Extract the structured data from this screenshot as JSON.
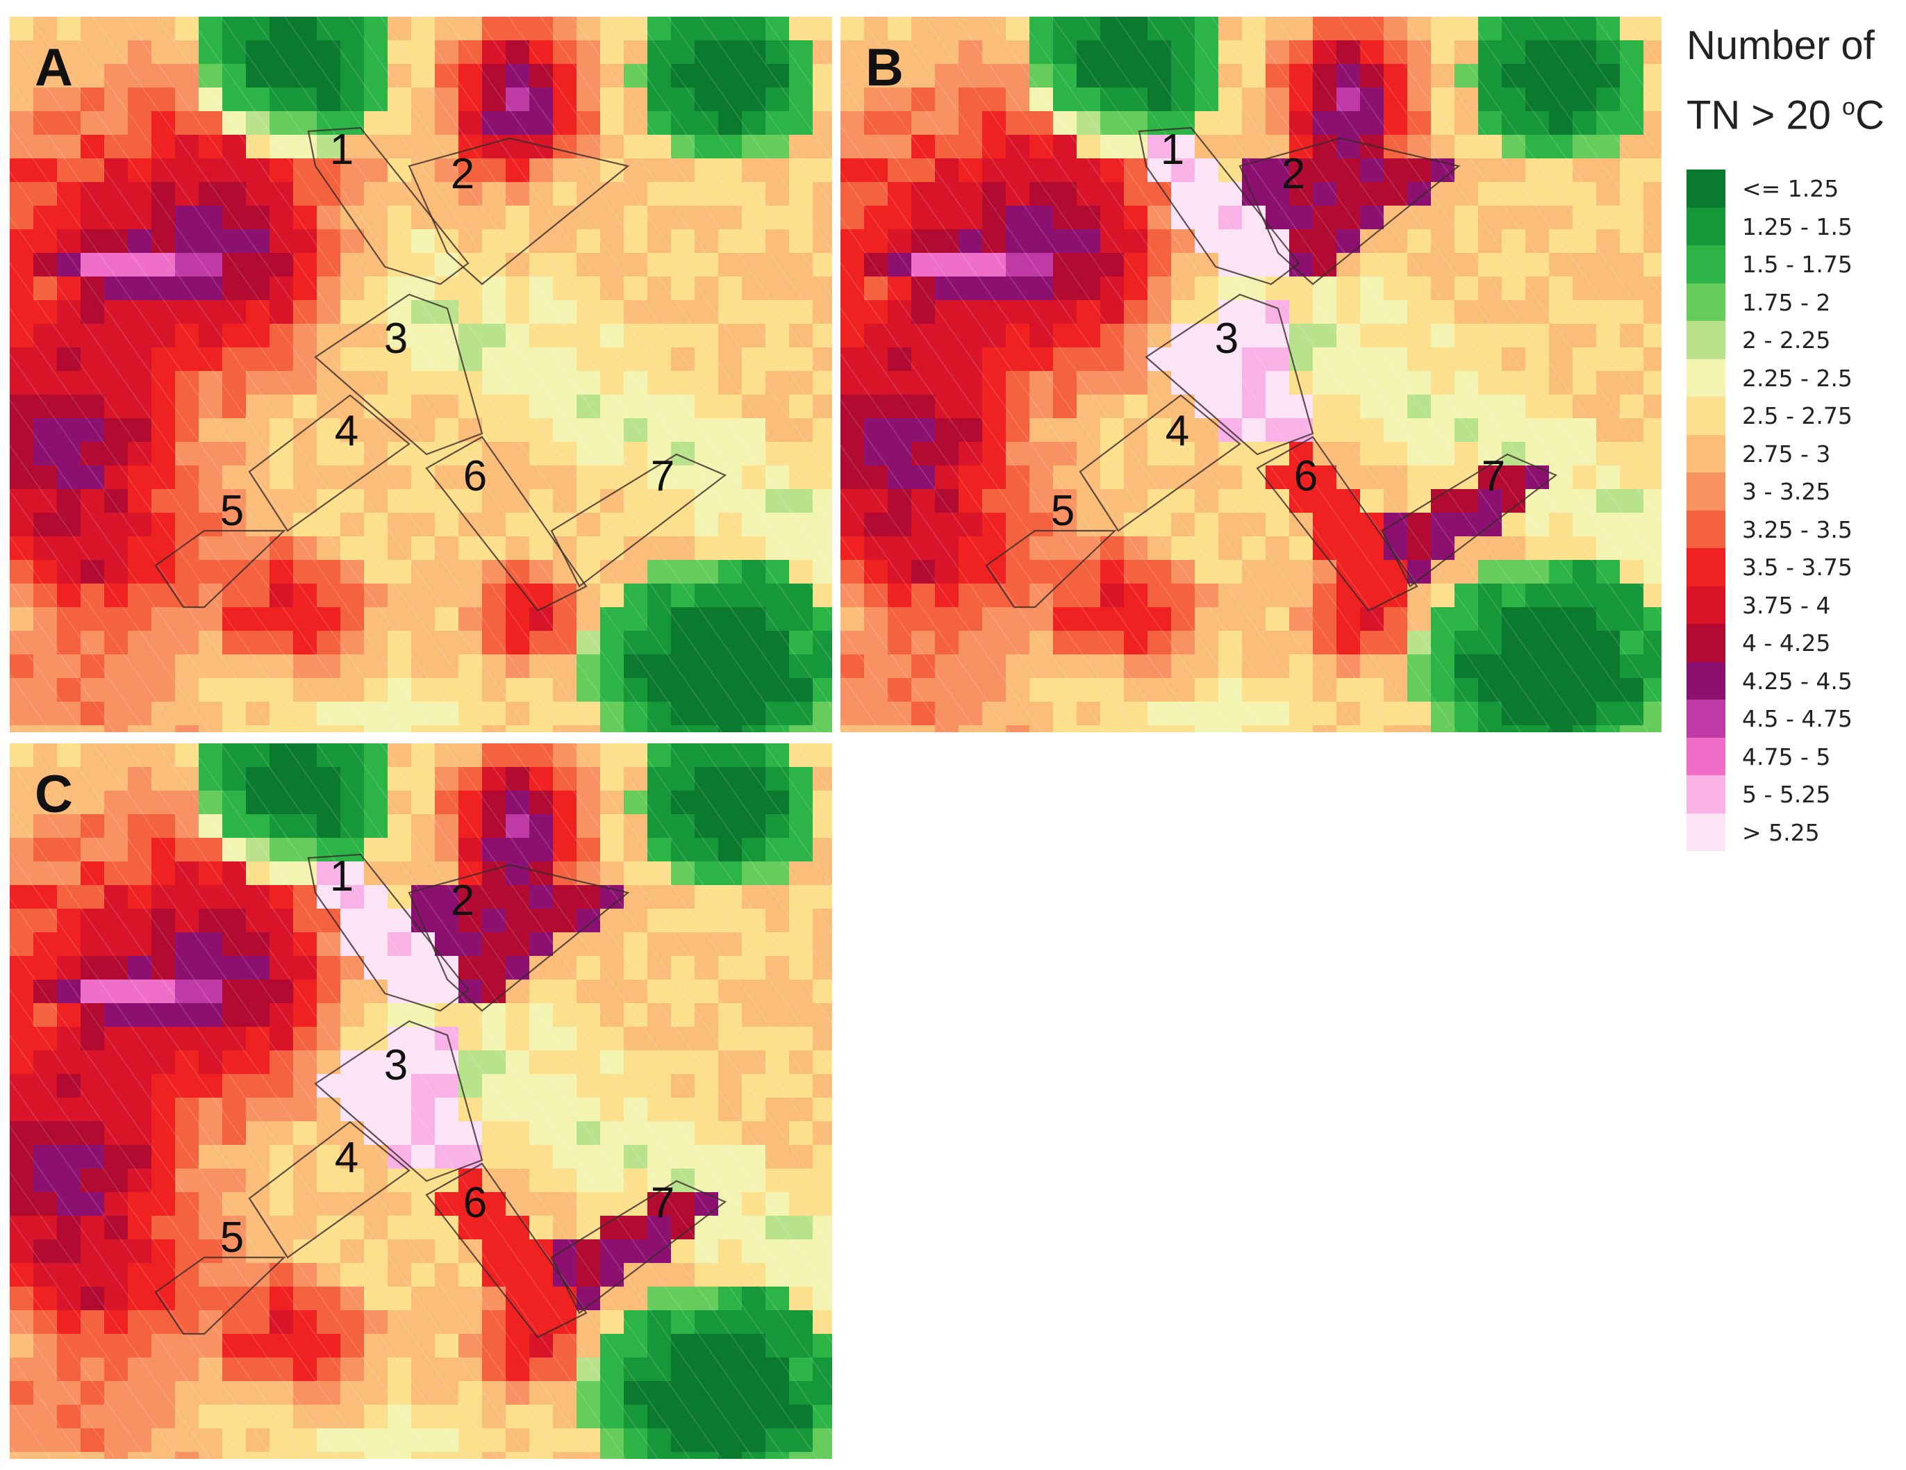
{
  "figure": {
    "panels": [
      {
        "label": "A",
        "variant": "baseline"
      },
      {
        "label": "B",
        "variant": "scenario-b"
      },
      {
        "label": "C",
        "variant": "scenario-c"
      }
    ],
    "zone_labels": [
      "1",
      "2",
      "3",
      "4",
      "5",
      "6",
      "7"
    ]
  },
  "legend": {
    "title_line1": "Number of",
    "title_line2_pre": "TN > 20 ",
    "title_sup": "o",
    "title_post": "C",
    "classes": [
      {
        "label": "<= 1.25",
        "color": "#0b7a2e"
      },
      {
        "label": "1.25 - 1.5",
        "color": "#16983a"
      },
      {
        "label": "1.5 - 1.75",
        "color": "#2cb446"
      },
      {
        "label": "1.75 - 2",
        "color": "#66cc5c"
      },
      {
        "label": "2 - 2.25",
        "color": "#b8e38c"
      },
      {
        "label": "2.25 - 2.5",
        "color": "#f3f4b2"
      },
      {
        "label": "2.5 - 2.75",
        "color": "#fde08e"
      },
      {
        "label": "2.75 - 3",
        "color": "#fbbd7a"
      },
      {
        "label": "3 - 3.25",
        "color": "#f89262"
      },
      {
        "label": "3.25 - 3.5",
        "color": "#f4623f"
      },
      {
        "label": "3.5 - 3.75",
        "color": "#ef2121"
      },
      {
        "label": "3.75 - 4",
        "color": "#d91428"
      },
      {
        "label": "4 - 4.25",
        "color": "#b20a30"
      },
      {
        "label": "4.25 - 4.5",
        "color": "#8c1070"
      },
      {
        "label": "4.5 - 4.75",
        "color": "#c03aa6"
      },
      {
        "label": "4.75 - 5",
        "color": "#ee6ec8"
      },
      {
        "label": "5 - 5.25",
        "color": "#f8b2e6"
      },
      {
        "label": "> 5.25",
        "color": "#fbe4f6"
      }
    ]
  }
}
